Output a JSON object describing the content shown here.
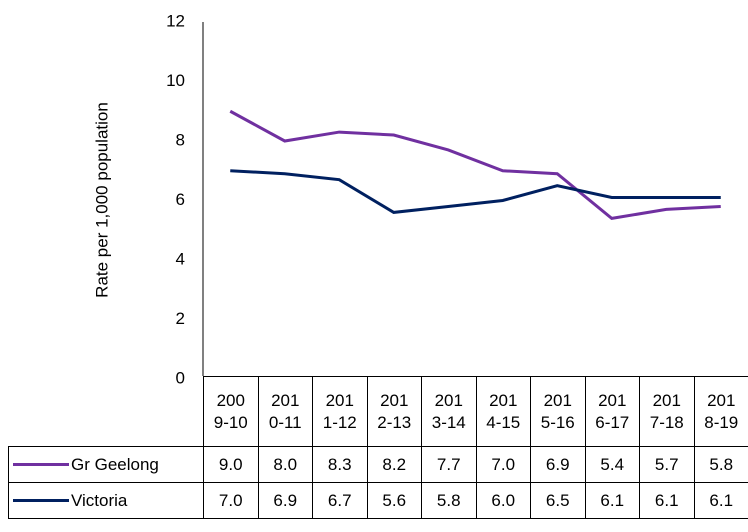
{
  "chart_data": {
    "type": "line",
    "y_label": "Rate per 1,000 population",
    "categories": [
      "2009-10",
      "2010-11",
      "2011-12",
      "2012-13",
      "2013-14",
      "2014-15",
      "2015-16",
      "2016-17",
      "2017-18",
      "2018-19"
    ],
    "series": [
      {
        "name": "Gr Geelong",
        "color": "#7030a0",
        "values": [
          9.0,
          8.0,
          8.3,
          8.2,
          7.7,
          7.0,
          6.9,
          5.4,
          5.7,
          5.8
        ],
        "value_labels": [
          "9.0",
          "8.0",
          "8.3",
          "8.2",
          "7.7",
          "7.0",
          "6.9",
          "5.4",
          "5.7",
          "5.8"
        ]
      },
      {
        "name": "Victoria",
        "color": "#002060",
        "values": [
          7.0,
          6.9,
          6.7,
          5.6,
          5.8,
          6.0,
          6.5,
          6.1,
          6.1,
          6.1
        ],
        "value_labels": [
          "7.0",
          "6.9",
          "6.7",
          "5.6",
          "5.8",
          "6.0",
          "6.5",
          "6.1",
          "6.1",
          "6.1"
        ]
      }
    ],
    "ylim": [
      0,
      12
    ],
    "yticks": [
      0,
      2,
      4,
      6,
      8,
      10,
      12
    ],
    "grid": false
  }
}
